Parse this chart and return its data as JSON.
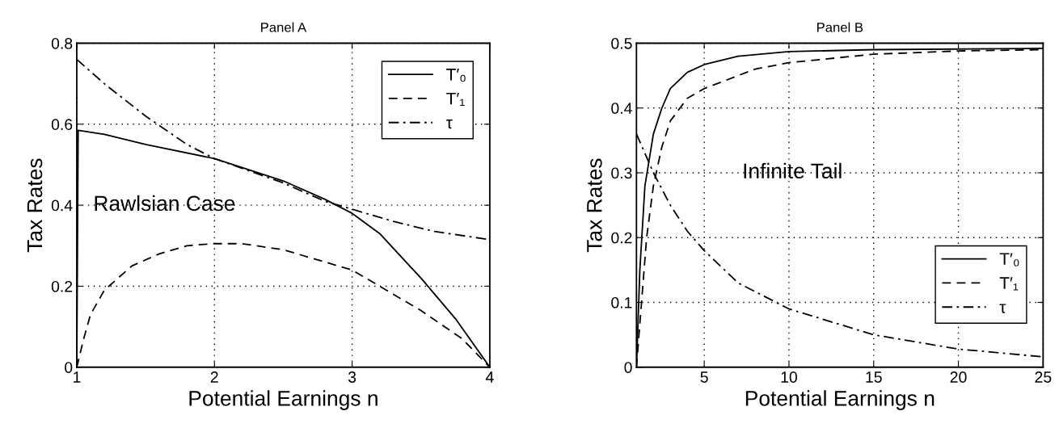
{
  "chart_data": [
    {
      "type": "line",
      "title": "Panel A",
      "xlabel": "Potential Earnings n",
      "ylabel": "Tax Rates",
      "xlim": [
        1,
        4
      ],
      "ylim": [
        0,
        0.8
      ],
      "xticks": [
        1,
        2,
        3,
        4
      ],
      "yticks": [
        0,
        0.2,
        0.4,
        0.6,
        0.8
      ],
      "grid": true,
      "legend": "top right",
      "annotations": [
        "Rawlsian Case"
      ],
      "series": [
        {
          "name": "T′₀",
          "color": "#000000",
          "line_style": "solid",
          "x": [
            1,
            1.01,
            1.2,
            1.5,
            2,
            2.5,
            2.8,
            3,
            3.2,
            3.5,
            3.75,
            4
          ],
          "values": [
            0,
            0.585,
            0.575,
            0.55,
            0.515,
            0.46,
            0.415,
            0.38,
            0.33,
            0.22,
            0.12,
            0
          ]
        },
        {
          "name": "T′₁",
          "color": "#000000",
          "line_style": "dashed",
          "x": [
            1,
            1.05,
            1.1,
            1.2,
            1.4,
            1.6,
            1.8,
            2,
            2.2,
            2.5,
            2.8,
            3,
            3.2,
            3.5,
            3.8,
            4
          ],
          "values": [
            0,
            0.07,
            0.13,
            0.19,
            0.25,
            0.28,
            0.3,
            0.305,
            0.305,
            0.29,
            0.26,
            0.24,
            0.2,
            0.14,
            0.07,
            0
          ]
        },
        {
          "name": "τ",
          "color": "#000000",
          "line_style": "dashdot",
          "x": [
            1,
            1.2,
            1.5,
            1.8,
            2,
            2.5,
            2.8,
            3,
            3.3,
            3.6,
            4
          ],
          "values": [
            0.76,
            0.7,
            0.62,
            0.55,
            0.515,
            0.455,
            0.41,
            0.39,
            0.36,
            0.335,
            0.315
          ]
        }
      ]
    },
    {
      "type": "line",
      "title": "Panel B",
      "xlabel": "Potential Earnings n",
      "ylabel": "Tax Rates",
      "xlim": [
        1,
        25
      ],
      "ylim": [
        0,
        0.5
      ],
      "xticks": [
        5,
        10,
        15,
        20,
        25
      ],
      "yticks": [
        0,
        0.1,
        0.2,
        0.3,
        0.4,
        0.5
      ],
      "grid": true,
      "legend": "bottom right",
      "annotations": [
        "Infinite Tail"
      ],
      "series": [
        {
          "name": "T′₀",
          "color": "#000000",
          "line_style": "solid",
          "x": [
            1,
            1.2,
            1.5,
            2,
            2.5,
            3,
            4,
            5,
            7,
            10,
            15,
            25
          ],
          "values": [
            0,
            0.15,
            0.28,
            0.36,
            0.4,
            0.43,
            0.455,
            0.467,
            0.48,
            0.487,
            0.49,
            0.492
          ]
        },
        {
          "name": "T′₁",
          "color": "#000000",
          "line_style": "dashed",
          "x": [
            1,
            1.3,
            1.6,
            2,
            2.5,
            3,
            4,
            5,
            6,
            8,
            10,
            15,
            20,
            25
          ],
          "values": [
            0,
            0.1,
            0.2,
            0.28,
            0.34,
            0.38,
            0.415,
            0.43,
            0.44,
            0.46,
            0.47,
            0.483,
            0.488,
            0.49
          ]
        },
        {
          "name": "τ",
          "color": "#000000",
          "line_style": "dashdot",
          "x": [
            1,
            1.5,
            2,
            3,
            4,
            5,
            7,
            10,
            15,
            20,
            25
          ],
          "values": [
            0.36,
            0.33,
            0.3,
            0.25,
            0.21,
            0.18,
            0.13,
            0.09,
            0.05,
            0.028,
            0.016
          ]
        }
      ]
    }
  ]
}
